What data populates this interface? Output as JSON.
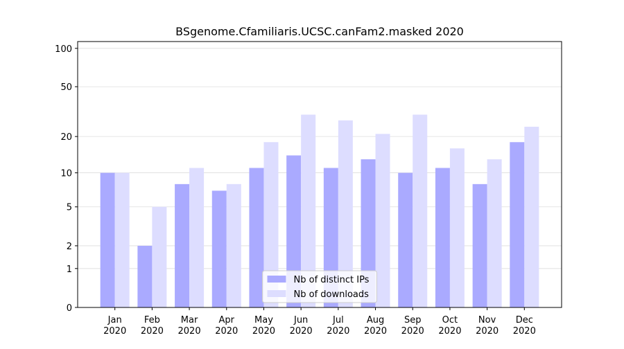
{
  "chart_data": {
    "type": "bar",
    "title": "BSgenome.Cfamiliaris.UCSC.canFam2.masked 2020",
    "categories": [
      "Jan\n2020",
      "Feb\n2020",
      "Mar\n2020",
      "Apr\n2020",
      "May\n2020",
      "Jun\n2020",
      "Jul\n2020",
      "Aug\n2020",
      "Sep\n2020",
      "Oct\n2020",
      "Nov\n2020",
      "Dec\n2020"
    ],
    "series": [
      {
        "name": "Nb of distinct IPs",
        "color": "#aaaaff",
        "values": [
          10,
          2,
          8,
          7,
          11,
          14,
          11,
          13,
          10,
          11,
          8,
          18
        ]
      },
      {
        "name": "Nb of downloads",
        "color": "#ddddff",
        "values": [
          10,
          5,
          11,
          8,
          18,
          30,
          27,
          21,
          30,
          16,
          13,
          24
        ]
      }
    ],
    "yscale": "log1p",
    "ylim": [
      0,
      113
    ],
    "yticks": [
      0,
      1,
      2,
      5,
      10,
      20,
      50,
      100
    ],
    "grid": true,
    "legend": "lower center"
  }
}
